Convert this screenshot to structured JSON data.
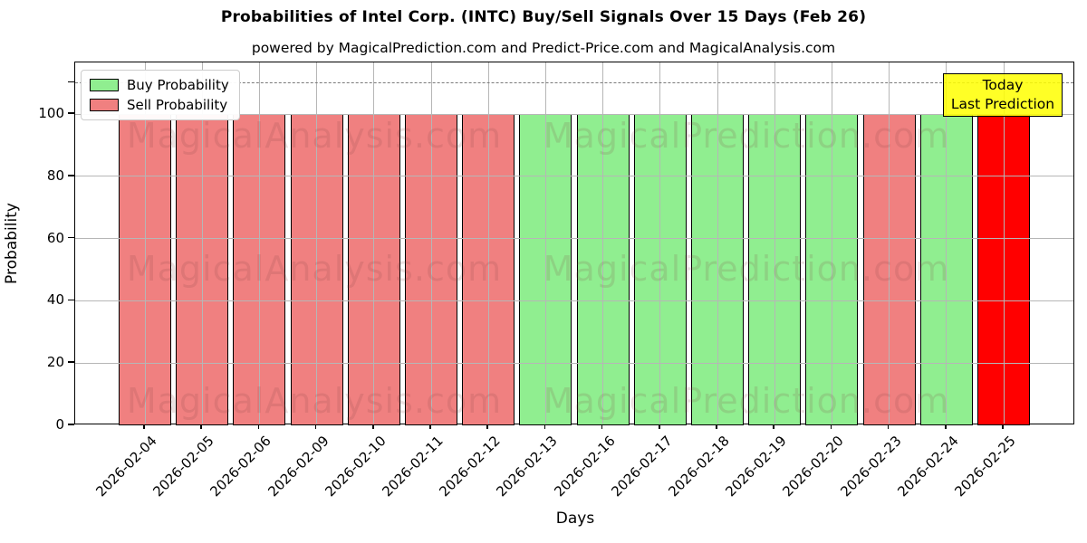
{
  "title": "Probabilities of Intel Corp. (INTC) Buy/Sell Signals Over 15 Days (Feb 26)",
  "subtitle": "powered by MagicalPrediction.com and Predict-Price.com and MagicalAnalysis.com",
  "axes": {
    "xlabel": "Days",
    "ylabel": "Probability",
    "yticks": [
      0,
      20,
      40,
      60,
      80,
      100
    ],
    "extra_unlabeled_ytick": 110,
    "ylim": [
      0,
      116.6
    ],
    "grid": true,
    "grid_color": "#b6b6b6"
  },
  "legend": {
    "position": "upper left",
    "items": [
      {
        "label": "Buy Probability",
        "color": "#90EE90"
      },
      {
        "label": "Sell Probability",
        "color": "#F08080"
      }
    ]
  },
  "annotation": {
    "lines": [
      "Today",
      "Last Prediction"
    ],
    "bg_color": "#FFFF00",
    "border_color": "#000000"
  },
  "threshold": {
    "value": 110,
    "style": "dashed",
    "color": "#7a7a7a"
  },
  "watermarks": {
    "texts": [
      "MagicalAnalysis.com",
      "MagicalPrediction.com"
    ],
    "color": "rgba(130,70,70,0.16)"
  },
  "chart_data": {
    "type": "bar",
    "title": "Probabilities of Intel Corp. (INTC) Buy/Sell Signals Over 15 Days (Feb 26)",
    "xlabel": "Days",
    "ylabel": "Probability",
    "ylim": [
      0,
      116.6
    ],
    "categories": [
      "2026-02-04",
      "2026-02-05",
      "2026-02-06",
      "2026-02-09",
      "2026-02-10",
      "2026-02-11",
      "2026-02-12",
      "2026-02-13",
      "2026-02-16",
      "2026-02-17",
      "2026-02-18",
      "2026-02-19",
      "2026-02-20",
      "2026-02-23",
      "2026-02-24",
      "2026-02-25"
    ],
    "values": [
      100,
      100,
      100,
      100,
      100,
      100,
      100,
      100,
      100,
      100,
      100,
      100,
      100,
      100,
      100,
      100
    ],
    "signals": [
      "sell",
      "sell",
      "sell",
      "sell",
      "sell",
      "sell",
      "sell",
      "buy",
      "buy",
      "buy",
      "buy",
      "buy",
      "buy",
      "sell",
      "buy",
      "today"
    ],
    "bar_colors": {
      "buy": "#90EE90",
      "sell": "#F08080",
      "today": "#FF0000"
    },
    "bar_edge_color": "#000000",
    "legend_entries": [
      "Buy Probability",
      "Sell Probability"
    ],
    "dashed_line_y": 110
  }
}
